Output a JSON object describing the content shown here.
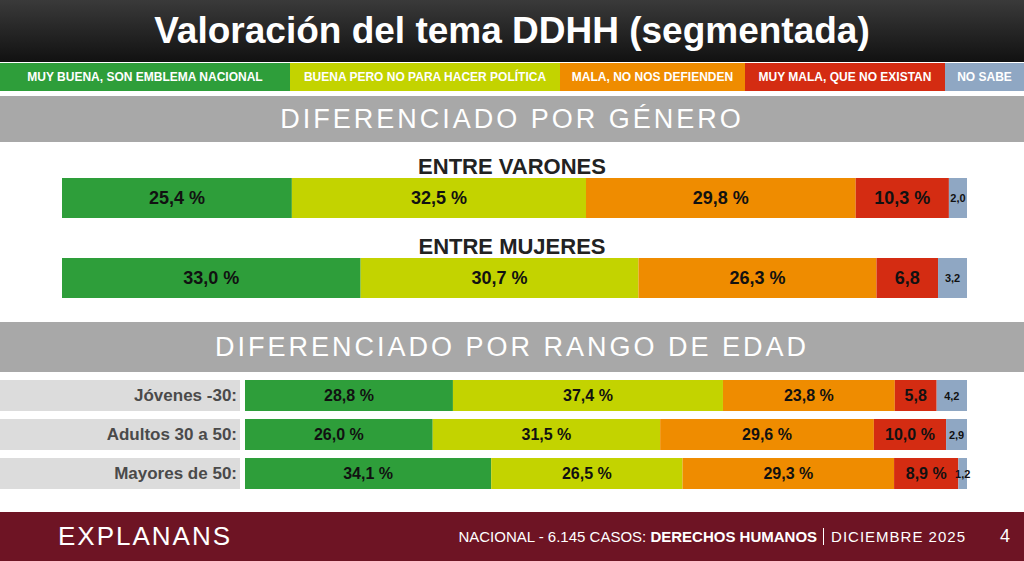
{
  "title": "Valoración del tema DDHH (segmentada)",
  "footer": {
    "brand": "EXPLANANS",
    "source": "NACIONAL - 6.145 CASOS:",
    "topic": "DERECHOS HUMANOS",
    "date": "DICIEMBRE 2025",
    "page": "4"
  },
  "chart_data": [
    {
      "type": "bar",
      "title": "DIFERENCIADO POR GÉNERO",
      "orientation": "horizontal",
      "stacked": true,
      "data_labels": true,
      "tick_labels": false,
      "legend": "top",
      "xlim": [
        0,
        100
      ],
      "categories": [
        "ENTRE VARONES",
        "ENTRE MUJERES"
      ],
      "series": [
        {
          "name": "MUY BUENA, SON EMBLEMA NACIONAL",
          "color": "#2e9e3a",
          "values": [
            25.4,
            33.0
          ],
          "value_labels": [
            "25,4 %",
            "33,0 %"
          ]
        },
        {
          "name": "BUENA PERO NO PARA HACER POLÍTICA",
          "color": "#c3d300",
          "values": [
            32.5,
            30.7
          ],
          "value_labels": [
            "32,5 %",
            "30,7 %"
          ]
        },
        {
          "name": "MALA, NO NOS DEFIENDEN",
          "color": "#ef8c00",
          "values": [
            29.8,
            26.3
          ],
          "value_labels": [
            "29,8 %",
            "26,3 %"
          ]
        },
        {
          "name": "MUY MALA, QUE NO EXISTAN",
          "color": "#d42c12",
          "values": [
            10.3,
            6.8
          ],
          "value_labels": [
            "10,3 %",
            "6,8"
          ]
        },
        {
          "name": "NO SABE",
          "color": "#8fa7c3",
          "values": [
            2.0,
            3.2
          ],
          "value_labels": [
            "2,0",
            "3,2"
          ]
        }
      ]
    },
    {
      "type": "bar",
      "title": "DIFERENCIADO POR RANGO DE EDAD",
      "orientation": "horizontal",
      "stacked": true,
      "data_labels": true,
      "tick_labels": false,
      "xlim": [
        0,
        100
      ],
      "categories": [
        "Jóvenes -30:",
        "Adultos 30 a 50:",
        "Mayores de 50:"
      ],
      "series": [
        {
          "name": "MUY BUENA, SON EMBLEMA NACIONAL",
          "color": "#2e9e3a",
          "values": [
            28.8,
            26.0,
            34.1
          ],
          "value_labels": [
            "28,8 %",
            "26,0 %",
            "34,1 %"
          ]
        },
        {
          "name": "BUENA PERO NO PARA HACER POLÍTICA",
          "color": "#c3d300",
          "values": [
            37.4,
            31.5,
            26.5
          ],
          "value_labels": [
            "37,4 %",
            "31,5 %",
            "26,5 %"
          ]
        },
        {
          "name": "MALA, NO NOS DEFIENDEN",
          "color": "#ef8c00",
          "values": [
            23.8,
            29.6,
            29.3
          ],
          "value_labels": [
            "23,8 %",
            "29,6 %",
            "29,3 %"
          ]
        },
        {
          "name": "MUY MALA, QUE NO EXISTAN",
          "color": "#d42c12",
          "values": [
            5.8,
            10.0,
            8.9
          ],
          "value_labels": [
            "5,8",
            "10,0 %",
            "8,9 %"
          ]
        },
        {
          "name": "NO SABE",
          "color": "#8fa7c3",
          "values": [
            4.2,
            2.9,
            1.2
          ],
          "value_labels": [
            "4,2",
            "2,9",
            "1,2"
          ]
        }
      ]
    }
  ]
}
